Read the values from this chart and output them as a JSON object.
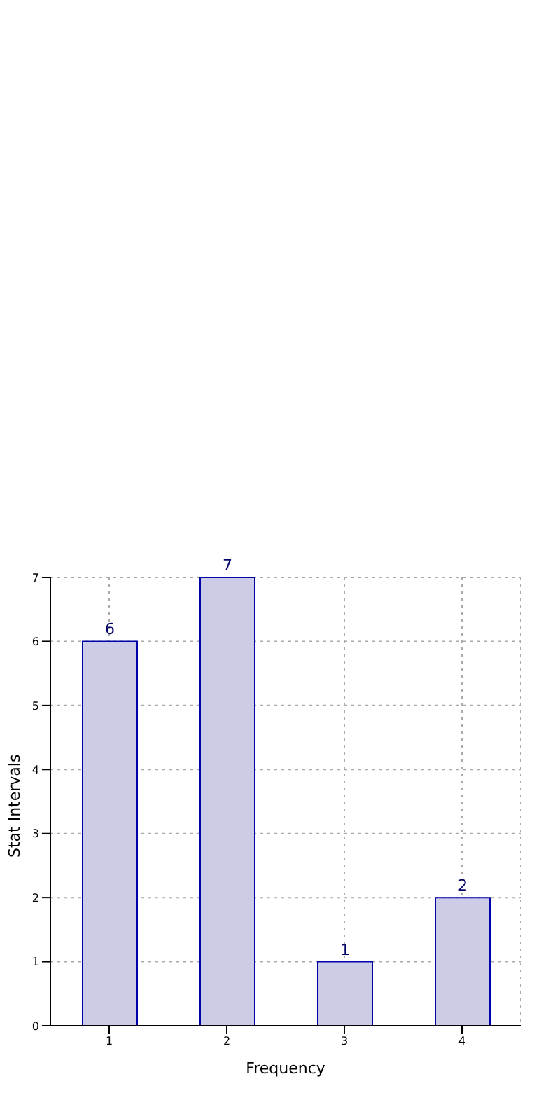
{
  "chart_data": {
    "type": "bar",
    "xlabel": "Frequency",
    "ylabel": "Stat Intervals",
    "categories": [
      "1",
      "2",
      "3",
      "4"
    ],
    "values": [
      6,
      7,
      1,
      2
    ],
    "color": "#ccccE6",
    "ylim": [
      0,
      7
    ],
    "yticks": [
      0,
      1,
      2,
      3,
      4,
      5,
      6,
      7
    ],
    "grid": true,
    "data_labels": true
  }
}
